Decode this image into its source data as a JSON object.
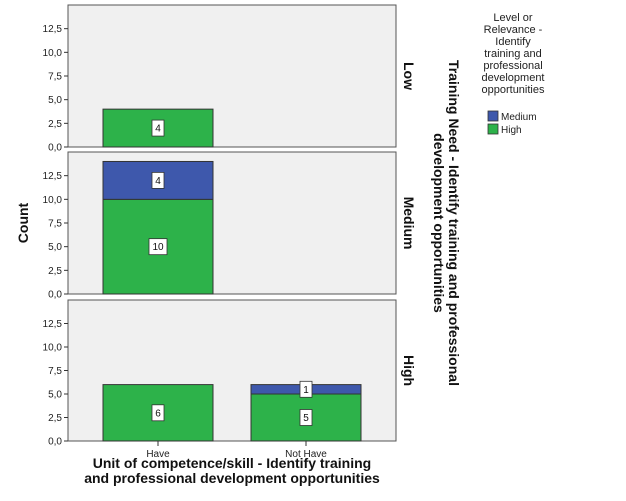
{
  "chart_data": {
    "type": "bar",
    "stacked": true,
    "faceted": true,
    "categories": [
      "Have",
      "Not Have"
    ],
    "facets": [
      {
        "label": "Low",
        "series": [
          {
            "name": "High",
            "values": [
              4,
              0
            ]
          },
          {
            "name": "Medium",
            "values": [
              0,
              0
            ]
          }
        ]
      },
      {
        "label": "Medium",
        "series": [
          {
            "name": "High",
            "values": [
              10,
              0
            ]
          },
          {
            "name": "Medium",
            "values": [
              4,
              0
            ]
          }
        ]
      },
      {
        "label": "High",
        "series": [
          {
            "name": "High",
            "values": [
              6,
              5
            ]
          },
          {
            "name": "Medium",
            "values": [
              0,
              1
            ]
          }
        ]
      }
    ],
    "ylim": [
      0,
      15
    ],
    "yticks": [
      "0,0",
      "2,5",
      "5,0",
      "7,5",
      "10,0",
      "12,5"
    ],
    "ytick_values": [
      0,
      2.5,
      5,
      7.5,
      10,
      12.5
    ],
    "ylabel": "Count",
    "xlabel_lines": [
      "Unit of competence/skill - Identify training",
      "and professional development opportunities"
    ],
    "facet_axis_title_lines": [
      "Training Need - Identify training and professional",
      "development opportunities"
    ],
    "legend": {
      "title_lines": [
        "Level or",
        "Relevance -",
        "Identify",
        "training and",
        "professional",
        "development",
        "opportunities"
      ],
      "items": [
        {
          "name": "Medium",
          "color": "#3e58ac"
        },
        {
          "name": "High",
          "color": "#2db24a"
        }
      ]
    },
    "colors": {
      "High": "#2db24a",
      "Medium": "#3e58ac"
    },
    "grid": false
  }
}
